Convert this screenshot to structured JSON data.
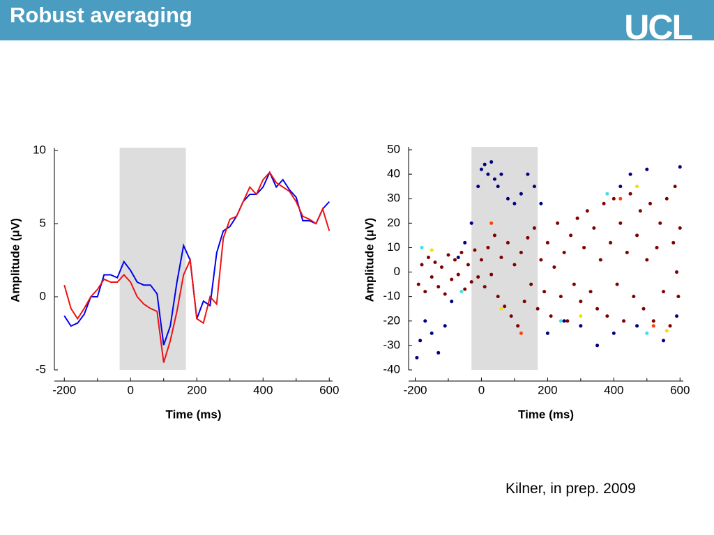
{
  "header": {
    "title": "Robust averaging",
    "logo": "UCL"
  },
  "citation": "Kilner, in prep. 2009",
  "chart_data": [
    {
      "type": "line",
      "xlabel": "Time (ms)",
      "ylabel": "Amplitude (μV)",
      "xlim": [
        -230,
        610
      ],
      "ylim": [
        -5,
        10
      ],
      "xticks": [
        -200,
        0,
        200,
        400,
        600
      ],
      "xminor": [
        -100,
        100,
        300,
        500
      ],
      "yticks": [
        -5,
        0,
        5,
        10
      ],
      "shade": [
        -33,
        167
      ],
      "shade_color": "#dddddd",
      "x": [
        -200,
        -180,
        -160,
        -140,
        -120,
        -100,
        -80,
        -60,
        -40,
        -20,
        0,
        20,
        40,
        60,
        80,
        100,
        120,
        140,
        160,
        180,
        200,
        220,
        240,
        260,
        280,
        300,
        320,
        340,
        360,
        380,
        400,
        420,
        440,
        460,
        480,
        500,
        520,
        540,
        560,
        580,
        600
      ],
      "series": [
        {
          "color": "#0000ee",
          "values": [
            -1.3,
            -2.0,
            -1.8,
            -1.2,
            0,
            0,
            1.5,
            1.5,
            1.3,
            2.4,
            1.8,
            1.0,
            0.8,
            0.8,
            0.2,
            -3.3,
            -2.0,
            1.0,
            3.5,
            2.5,
            -1.5,
            -0.3,
            -0.6,
            3.0,
            4.5,
            4.8,
            5.5,
            6.5,
            7.0,
            7.0,
            7.5,
            8.5,
            7.5,
            8.0,
            7.3,
            6.8,
            5.2,
            5.2,
            5.0,
            6.0,
            6.5
          ]
        },
        {
          "color": "#ee1111",
          "values": [
            0.8,
            -0.8,
            -1.5,
            -0.8,
            0,
            0.5,
            1.2,
            1.0,
            1.0,
            1.5,
            1.0,
            0,
            -0.5,
            -0.8,
            -1.0,
            -4.5,
            -3.0,
            -1.0,
            1.5,
            2.5,
            -1.5,
            -1.8,
            0,
            -0.5,
            4.0,
            5.3,
            5.5,
            6.5,
            7.5,
            7.0,
            8.0,
            8.5,
            7.8,
            7.5,
            7.2,
            6.5,
            5.5,
            5.3,
            5.0,
            6.0,
            4.5
          ]
        }
      ]
    },
    {
      "type": "scatter",
      "xlabel": "Time (ms)",
      "ylabel": "Amplitude (μV)",
      "xlim": [
        -220,
        610
      ],
      "ylim": [
        -40,
        50
      ],
      "xticks": [
        -200,
        0,
        200,
        400,
        600
      ],
      "xminor": [
        -100,
        100,
        300,
        500
      ],
      "yticks": [
        -40,
        -30,
        -20,
        -10,
        0,
        10,
        20,
        30,
        40,
        50
      ],
      "shade": [
        -30,
        170
      ],
      "shade_color": "#dddddd",
      "series": [
        {
          "color": "#000080",
          "x": [
            -195,
            -185,
            -170,
            -150,
            -130,
            -110,
            -90,
            -70,
            -50,
            -30,
            -10,
            0,
            10,
            20,
            30,
            40,
            50,
            60,
            80,
            100,
            120,
            140,
            160,
            180,
            200,
            250,
            300,
            350,
            400,
            420,
            450,
            500,
            550,
            600,
            590,
            470
          ],
          "y": [
            -35,
            -28,
            -20,
            -25,
            -33,
            -22,
            -12,
            6,
            12,
            20,
            35,
            42,
            44,
            40,
            45,
            38,
            35,
            40,
            30,
            28,
            32,
            40,
            35,
            28,
            -25,
            -20,
            -22,
            -30,
            -25,
            35,
            40,
            42,
            -28,
            43,
            -18,
            -22
          ]
        },
        {
          "color": "#40e0e0",
          "x": [
            -180,
            -60,
            240,
            380,
            500
          ],
          "y": [
            10,
            -8,
            -20,
            32,
            -25
          ]
        },
        {
          "color": "#f0e000",
          "x": [
            -150,
            60,
            300,
            470,
            560
          ],
          "y": [
            9,
            -15,
            -18,
            35,
            -24
          ]
        },
        {
          "color": "#ff4000",
          "x": [
            30,
            120,
            420,
            520
          ],
          "y": [
            20,
            -25,
            30,
            -22
          ]
        },
        {
          "color": "#800000",
          "x": [
            -190,
            -180,
            -170,
            -160,
            -150,
            -140,
            -130,
            -120,
            -110,
            -100,
            -90,
            -80,
            -70,
            -60,
            -50,
            -40,
            -30,
            -20,
            -10,
            0,
            10,
            20,
            30,
            40,
            50,
            60,
            70,
            80,
            90,
            100,
            110,
            120,
            130,
            140,
            150,
            160,
            170,
            180,
            190,
            200,
            210,
            220,
            230,
            240,
            250,
            260,
            270,
            280,
            290,
            300,
            310,
            320,
            330,
            340,
            350,
            360,
            370,
            380,
            390,
            400,
            410,
            420,
            430,
            440,
            450,
            460,
            470,
            480,
            490,
            500,
            510,
            520,
            530,
            540,
            550,
            560,
            570,
            580,
            590,
            600,
            595,
            585
          ],
          "y": [
            -5,
            3,
            -8,
            6,
            -2,
            4,
            -6,
            2,
            -9,
            7,
            -3,
            5,
            -1,
            8,
            -7,
            3,
            -4,
            9,
            -2,
            5,
            -6,
            10,
            -1,
            15,
            -10,
            6,
            -14,
            12,
            -18,
            3,
            -22,
            8,
            -12,
            14,
            -5,
            18,
            -15,
            5,
            -8,
            12,
            -18,
            2,
            20,
            -10,
            8,
            -20,
            15,
            -5,
            22,
            -12,
            10,
            25,
            -8,
            18,
            -15,
            5,
            28,
            -18,
            12,
            30,
            -5,
            20,
            -20,
            8,
            32,
            -10,
            15,
            25,
            -15,
            5,
            28,
            -20,
            10,
            20,
            -8,
            30,
            -22,
            12,
            0,
            18,
            -10,
            35
          ]
        }
      ]
    }
  ]
}
